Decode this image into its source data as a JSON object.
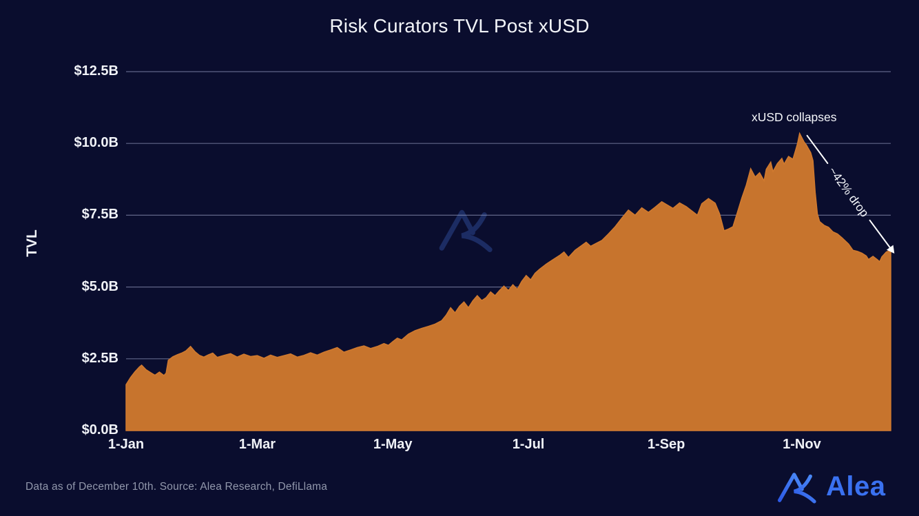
{
  "footer": {
    "source_note": "Data as of December 10th. Source: Alea Research, DefiLlama"
  },
  "brand": {
    "name": "Alea"
  },
  "colors": {
    "background": "#0a0d2e",
    "area_fill": "#c7742d",
    "area_edge": "#d07a2f",
    "grid": "#aab1d4",
    "title_text": "#f2f4f8",
    "tick_text": "#f0f2f7",
    "muted_text": "#9298ac",
    "annotation_text": "#f4f6fa",
    "arrow": "#ffffff",
    "logo_blue": "#3a71f0",
    "logo_gradient_start": "#2d5ae6",
    "logo_gradient_end": "#4c8cf8",
    "watermark_blue": "#1c2c63"
  },
  "chart_data": {
    "type": "area",
    "title": "Risk Curators TVL Post xUSD",
    "xlabel": "",
    "ylabel": "TVL",
    "grid": "horizontal-only",
    "legend": "none",
    "ylim": [
      0,
      12.5
    ],
    "xlim_days": [
      0,
      344
    ],
    "x_unit": "days since 1-Jan (end = Dec 10)",
    "y_unit": "USD billions",
    "y_ticks": {
      "labels": [
        "$0.0B",
        "$2.5B",
        "$5.0B",
        "$7.5B",
        "$10.0B",
        "$12.5B"
      ],
      "values": [
        0,
        2.5,
        5,
        7.5,
        10,
        12.5
      ]
    },
    "x_ticks": {
      "labels": [
        "1-Jan",
        "1-Mar",
        "1-May",
        "1-Jul",
        "1-Sep",
        "1-Nov"
      ],
      "days": [
        0,
        59,
        120,
        181,
        243,
        304
      ]
    },
    "annotations": [
      {
        "label": "xUSD collapses",
        "day": 303,
        "value": 10.35,
        "type": "text-with-arrow"
      },
      {
        "label": "~42% drop",
        "type": "arrow-text",
        "from": [
          306,
          10.3
        ],
        "to": [
          344,
          6.35
        ]
      }
    ],
    "series": [
      {
        "name": "Risk Curators TVL ($B)",
        "points": [
          [
            0,
            1.6
          ],
          [
            2,
            1.85
          ],
          [
            4,
            2.05
          ],
          [
            6,
            2.22
          ],
          [
            7,
            2.28
          ],
          [
            9,
            2.12
          ],
          [
            11,
            2.02
          ],
          [
            13,
            1.93
          ],
          [
            15,
            2.04
          ],
          [
            17,
            1.92
          ],
          [
            18,
            2.0
          ],
          [
            19,
            2.45
          ],
          [
            21,
            2.57
          ],
          [
            23,
            2.64
          ],
          [
            25,
            2.7
          ],
          [
            27,
            2.78
          ],
          [
            29,
            2.93
          ],
          [
            31,
            2.75
          ],
          [
            33,
            2.62
          ],
          [
            35,
            2.56
          ],
          [
            37,
            2.64
          ],
          [
            39,
            2.7
          ],
          [
            41,
            2.55
          ],
          [
            44,
            2.62
          ],
          [
            47,
            2.68
          ],
          [
            50,
            2.56
          ],
          [
            53,
            2.66
          ],
          [
            56,
            2.58
          ],
          [
            59,
            2.61
          ],
          [
            62,
            2.52
          ],
          [
            65,
            2.63
          ],
          [
            68,
            2.55
          ],
          [
            71,
            2.61
          ],
          [
            74,
            2.67
          ],
          [
            77,
            2.56
          ],
          [
            80,
            2.62
          ],
          [
            83,
            2.71
          ],
          [
            86,
            2.63
          ],
          [
            89,
            2.73
          ],
          [
            92,
            2.81
          ],
          [
            95,
            2.89
          ],
          [
            98,
            2.73
          ],
          [
            101,
            2.81
          ],
          [
            104,
            2.89
          ],
          [
            107,
            2.95
          ],
          [
            110,
            2.86
          ],
          [
            113,
            2.93
          ],
          [
            116,
            3.03
          ],
          [
            118,
            2.97
          ],
          [
            120,
            3.1
          ],
          [
            122,
            3.22
          ],
          [
            124,
            3.16
          ],
          [
            127,
            3.36
          ],
          [
            130,
            3.48
          ],
          [
            133,
            3.56
          ],
          [
            136,
            3.63
          ],
          [
            139,
            3.71
          ],
          [
            142,
            3.83
          ],
          [
            144,
            4.02
          ],
          [
            146,
            4.28
          ],
          [
            148,
            4.1
          ],
          [
            150,
            4.33
          ],
          [
            152,
            4.48
          ],
          [
            154,
            4.28
          ],
          [
            156,
            4.52
          ],
          [
            158,
            4.7
          ],
          [
            160,
            4.53
          ],
          [
            162,
            4.63
          ],
          [
            164,
            4.83
          ],
          [
            166,
            4.7
          ],
          [
            168,
            4.88
          ],
          [
            170,
            5.03
          ],
          [
            172,
            4.88
          ],
          [
            174,
            5.08
          ],
          [
            176,
            4.92
          ],
          [
            178,
            5.2
          ],
          [
            180,
            5.4
          ],
          [
            182,
            5.25
          ],
          [
            184,
            5.48
          ],
          [
            186,
            5.62
          ],
          [
            189,
            5.8
          ],
          [
            192,
            5.95
          ],
          [
            195,
            6.1
          ],
          [
            197,
            6.22
          ],
          [
            199,
            6.03
          ],
          [
            202,
            6.28
          ],
          [
            205,
            6.45
          ],
          [
            207,
            6.56
          ],
          [
            209,
            6.42
          ],
          [
            211,
            6.5
          ],
          [
            214,
            6.62
          ],
          [
            217,
            6.85
          ],
          [
            220,
            7.1
          ],
          [
            223,
            7.4
          ],
          [
            226,
            7.68
          ],
          [
            229,
            7.5
          ],
          [
            232,
            7.76
          ],
          [
            235,
            7.6
          ],
          [
            238,
            7.78
          ],
          [
            241,
            7.97
          ],
          [
            243,
            7.88
          ],
          [
            246,
            7.74
          ],
          [
            249,
            7.93
          ],
          [
            252,
            7.8
          ],
          [
            255,
            7.62
          ],
          [
            257,
            7.5
          ],
          [
            259,
            7.9
          ],
          [
            262,
            8.08
          ],
          [
            265,
            7.92
          ],
          [
            267,
            7.55
          ],
          [
            269,
            6.96
          ],
          [
            271,
            7.02
          ],
          [
            273,
            7.1
          ],
          [
            275,
            7.6
          ],
          [
            277,
            8.1
          ],
          [
            279,
            8.55
          ],
          [
            281,
            9.12
          ],
          [
            283,
            8.83
          ],
          [
            285,
            8.98
          ],
          [
            287,
            8.7
          ],
          [
            288,
            9.1
          ],
          [
            290,
            9.35
          ],
          [
            291,
            9.02
          ],
          [
            293,
            9.3
          ],
          [
            295,
            9.48
          ],
          [
            296,
            9.28
          ],
          [
            298,
            9.55
          ],
          [
            300,
            9.45
          ],
          [
            301,
            9.72
          ],
          [
            302,
            9.98
          ],
          [
            303,
            10.35
          ],
          [
            305,
            10.05
          ],
          [
            306,
            9.95
          ],
          [
            308,
            9.68
          ],
          [
            309,
            9.4
          ],
          [
            310,
            8.3
          ],
          [
            311,
            7.55
          ],
          [
            312,
            7.28
          ],
          [
            314,
            7.15
          ],
          [
            316,
            7.08
          ],
          [
            318,
            6.92
          ],
          [
            320,
            6.85
          ],
          [
            322,
            6.72
          ],
          [
            325,
            6.5
          ],
          [
            327,
            6.28
          ],
          [
            329,
            6.24
          ],
          [
            331,
            6.18
          ],
          [
            333,
            6.08
          ],
          [
            334,
            5.96
          ],
          [
            336,
            6.07
          ],
          [
            338,
            5.95
          ],
          [
            339,
            5.88
          ],
          [
            340,
            6.05
          ],
          [
            342,
            6.22
          ],
          [
            344,
            6.28
          ]
        ]
      }
    ]
  }
}
